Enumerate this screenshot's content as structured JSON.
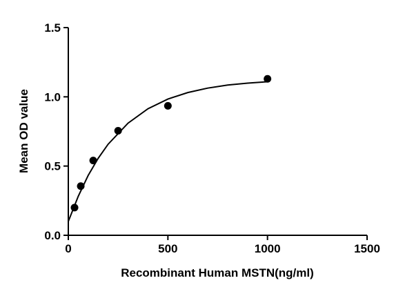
{
  "chart_data": {
    "type": "scatter",
    "xlabel": "Recombinant Human MSTN(ng/ml)",
    "ylabel": "Mean OD value",
    "x": [
      31.25,
      62.5,
      125,
      250,
      500,
      1000
    ],
    "values": [
      0.2,
      0.355,
      0.54,
      0.755,
      0.935,
      1.13
    ],
    "color": "#000000",
    "curve": {
      "x": [
        0,
        50,
        100,
        150,
        200,
        300,
        400,
        500,
        600,
        700,
        800,
        900,
        1000
      ],
      "values": [
        0.1,
        0.282,
        0.433,
        0.556,
        0.658,
        0.81,
        0.914,
        0.984,
        1.031,
        1.063,
        1.085,
        1.099,
        1.109
      ]
    },
    "xlim": [
      0,
      1500
    ],
    "xticks": [
      0,
      500,
      1000,
      1500
    ],
    "ylim": [
      0,
      1.5
    ],
    "yticks": [
      {
        "value": 0,
        "label": "0.0"
      },
      {
        "value": 0.5,
        "label": "0.5"
      },
      {
        "value": 1,
        "label": "1.0"
      },
      {
        "value": 1.5,
        "label": "1.5"
      }
    ],
    "grid": false
  }
}
